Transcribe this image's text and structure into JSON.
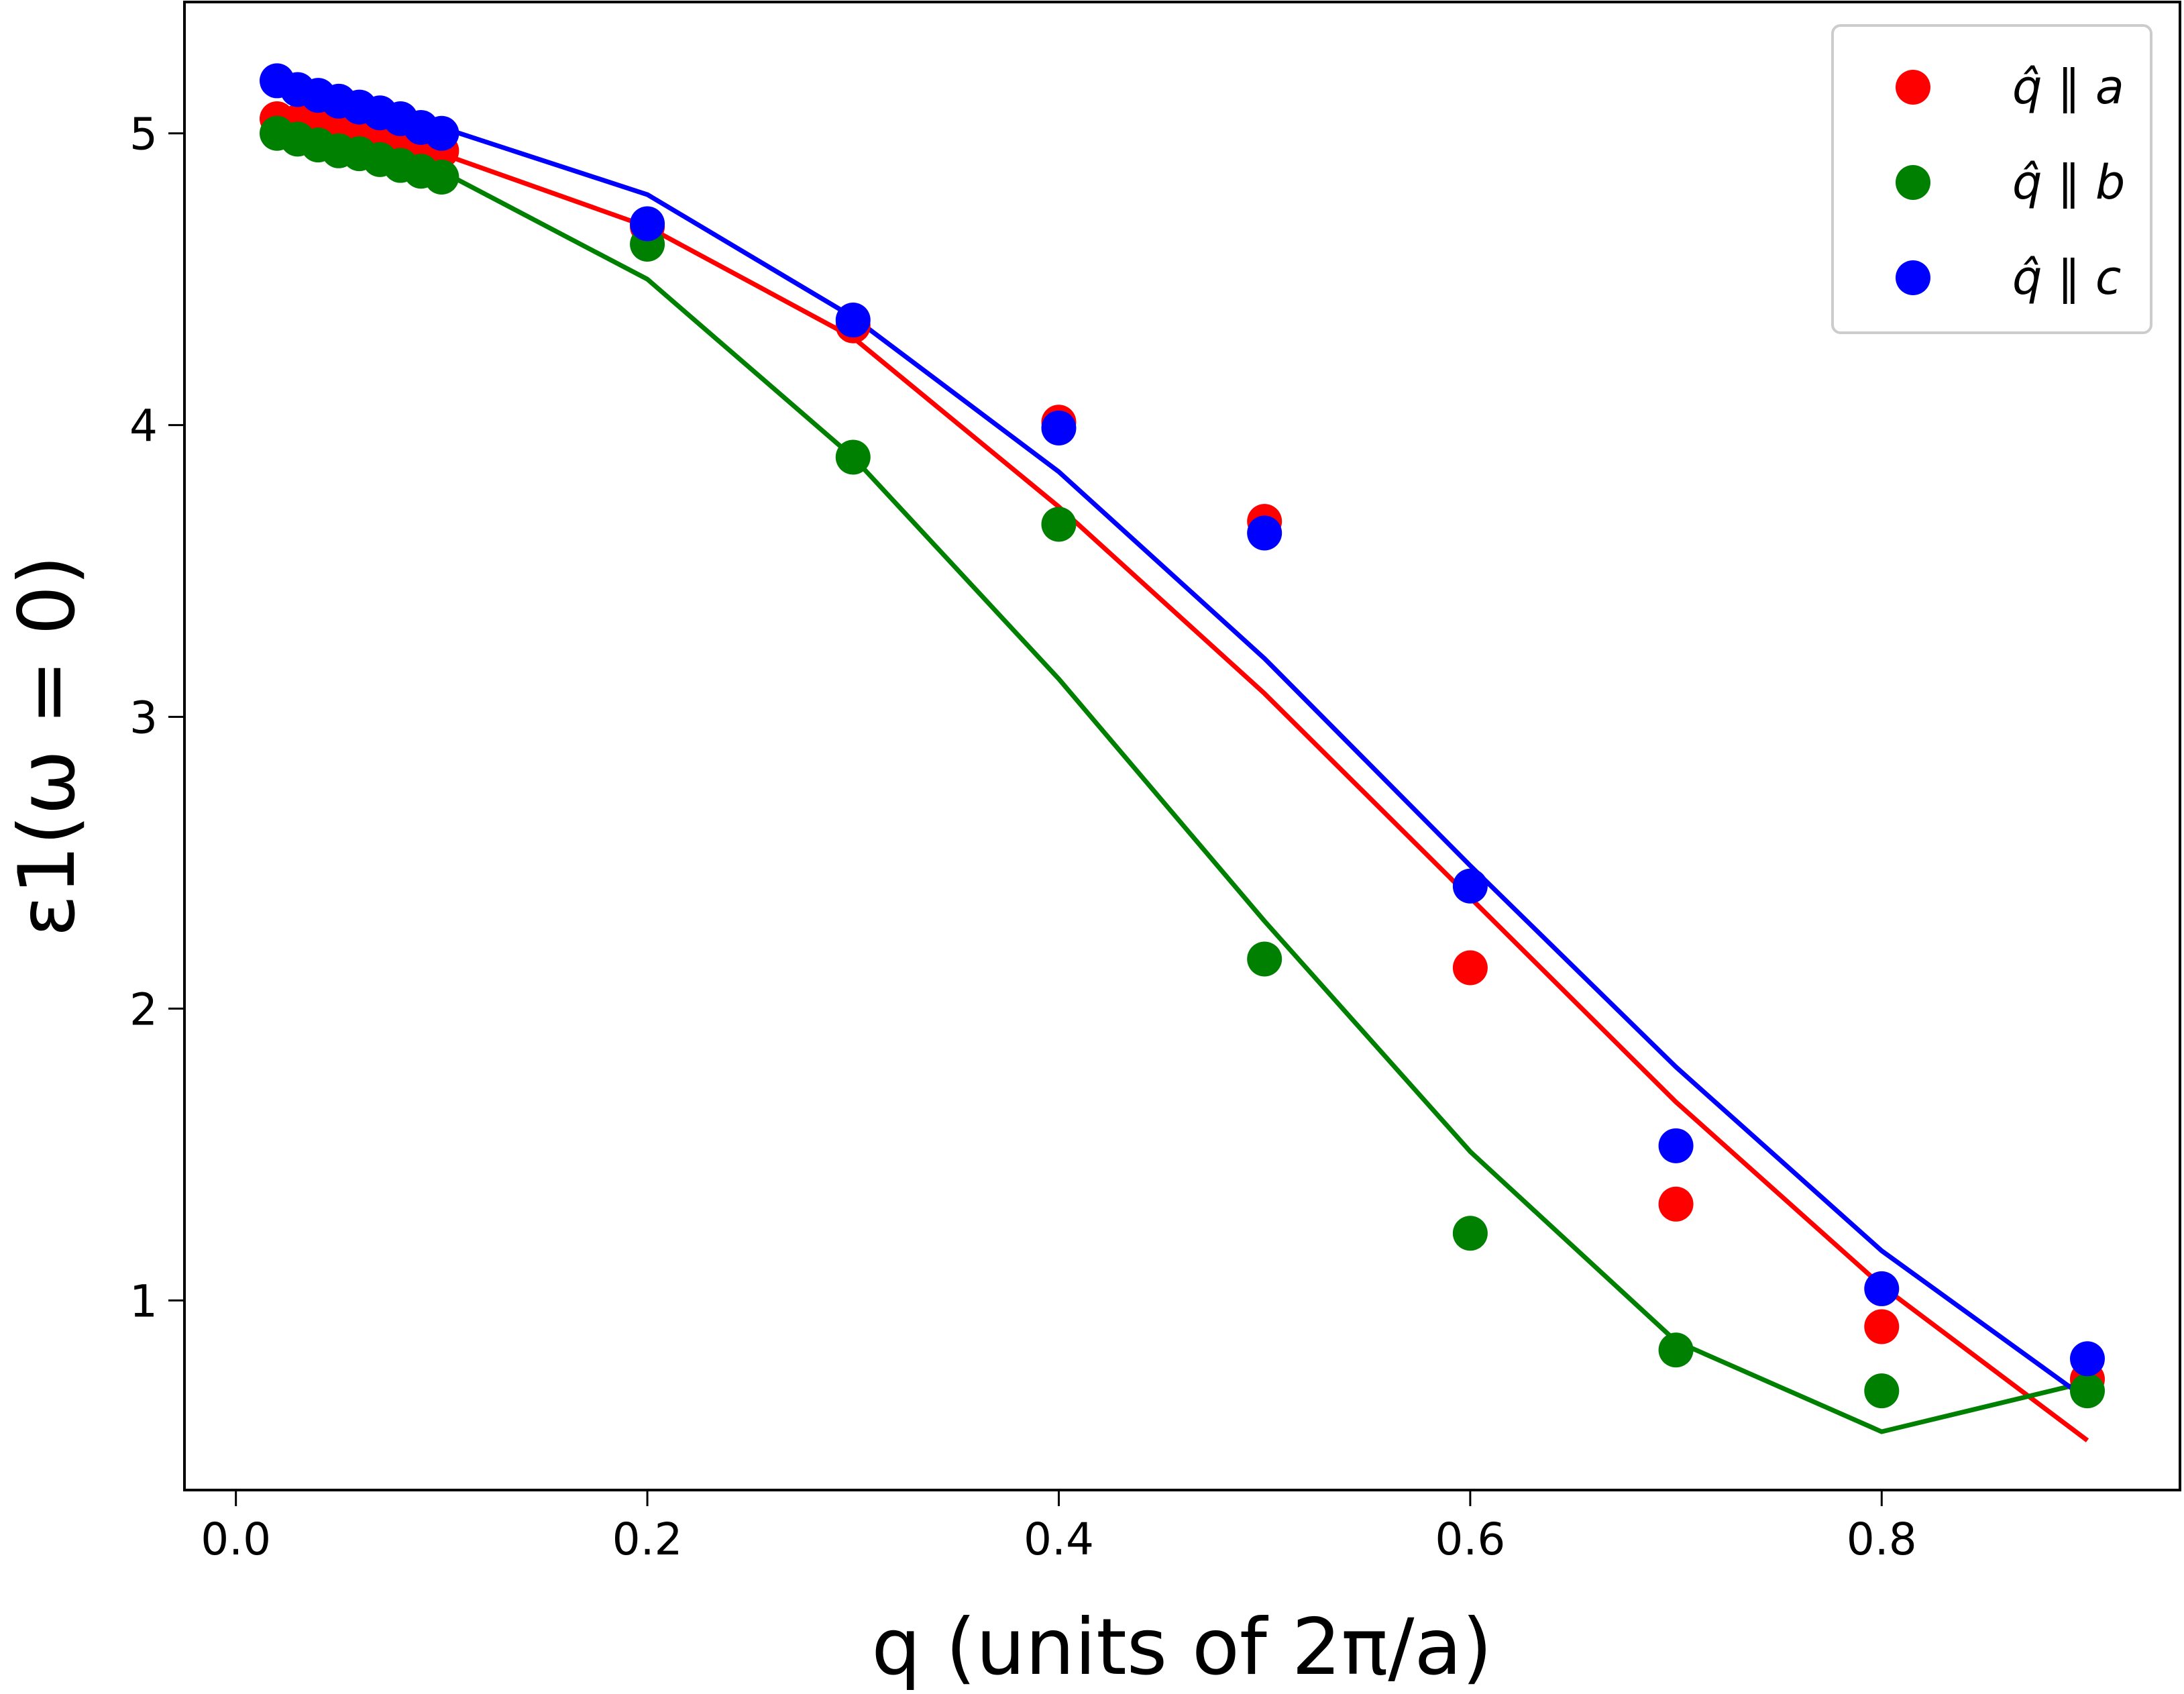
{
  "chart_data": {
    "type": "scatter",
    "title": "",
    "xlabel": "q (units of 2π/a)",
    "ylabel": "ε1(ω = 0)",
    "xlim": [
      -0.025,
      0.945
    ],
    "ylim": [
      0.35,
      5.45
    ],
    "xticks": [
      0.0,
      0.2,
      0.4,
      0.6,
      0.8
    ],
    "xtick_labels": [
      "0.0",
      "0.2",
      "0.4",
      "0.6",
      "0.8"
    ],
    "yticks": [
      1,
      2,
      3,
      4,
      5
    ],
    "ytick_labels": [
      "1",
      "2",
      "3",
      "4",
      "5"
    ],
    "legend_position": "top-right",
    "series": [
      {
        "name": "q̂ ∥ a",
        "color": "#ff0000",
        "points": {
          "x": [
            0.02,
            0.03,
            0.04,
            0.05,
            0.06,
            0.07,
            0.08,
            0.09,
            0.1,
            0.2,
            0.3,
            0.4,
            0.5,
            0.6,
            0.7,
            0.8,
            0.9
          ],
          "y": [
            5.05,
            5.04,
            5.03,
            5.02,
            5.01,
            5.0,
            4.98,
            4.96,
            4.94,
            4.68,
            4.34,
            4.01,
            3.67,
            2.14,
            1.33,
            0.91,
            0.73
          ]
        },
        "line": {
          "x": [
            0.02,
            0.1,
            0.2,
            0.3,
            0.4,
            0.5,
            0.6,
            0.7,
            0.8,
            0.9
          ],
          "y": [
            5.06,
            4.93,
            4.68,
            4.3,
            3.72,
            3.08,
            2.38,
            1.68,
            1.05,
            0.52
          ]
        }
      },
      {
        "name": "q̂ ∥ b",
        "color": "#008000",
        "points": {
          "x": [
            0.02,
            0.03,
            0.04,
            0.05,
            0.06,
            0.07,
            0.08,
            0.09,
            0.1,
            0.2,
            0.3,
            0.4,
            0.5,
            0.6,
            0.7,
            0.8,
            0.9
          ],
          "y": [
            5.0,
            4.98,
            4.96,
            4.94,
            4.93,
            4.91,
            4.89,
            4.87,
            4.85,
            4.62,
            3.89,
            3.66,
            2.17,
            1.23,
            0.83,
            0.69,
            0.69
          ]
        },
        "line": {
          "x": [
            0.02,
            0.1,
            0.2,
            0.3,
            0.4,
            0.5,
            0.6,
            0.7,
            0.8,
            0.9
          ],
          "y": [
            5.0,
            4.87,
            4.5,
            3.89,
            3.13,
            2.3,
            1.51,
            0.86,
            0.55,
            0.72
          ]
        }
      },
      {
        "name": "q̂ ∥ c",
        "color": "#0000ff",
        "points": {
          "x": [
            0.02,
            0.03,
            0.04,
            0.05,
            0.06,
            0.07,
            0.08,
            0.09,
            0.1,
            0.2,
            0.3,
            0.4,
            0.5,
            0.6,
            0.7,
            0.8,
            0.9
          ],
          "y": [
            5.18,
            5.15,
            5.13,
            5.11,
            5.09,
            5.07,
            5.05,
            5.02,
            5.0,
            4.69,
            4.36,
            3.99,
            3.63,
            2.42,
            1.53,
            1.04,
            0.8
          ]
        },
        "line": {
          "x": [
            0.02,
            0.1,
            0.2,
            0.3,
            0.4,
            0.5,
            0.6,
            0.7,
            0.8,
            0.9
          ],
          "y": [
            5.15,
            5.02,
            4.79,
            4.37,
            3.84,
            3.2,
            2.49,
            1.8,
            1.17,
            0.66
          ]
        }
      }
    ]
  }
}
